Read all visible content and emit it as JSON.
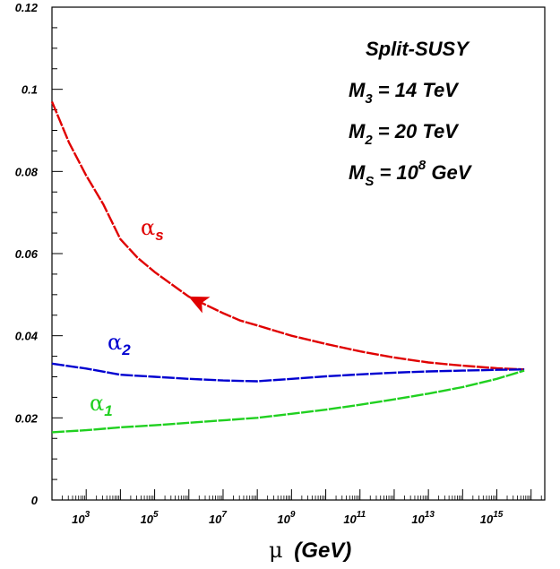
{
  "chart_data": {
    "type": "line",
    "title": "",
    "xlabel": {
      "symbol": "μ",
      "unit": "(GeV)"
    },
    "ylabel": "",
    "x_scale": "log10",
    "xlim_log10": [
      2.0,
      16.4
    ],
    "ylim": [
      0,
      0.12
    ],
    "grid": false,
    "y_ticks": [
      {
        "value": 0,
        "label": "0"
      },
      {
        "value": 0.02,
        "label": "0.02"
      },
      {
        "value": 0.04,
        "label": "0.04"
      },
      {
        "value": 0.06,
        "label": "0.06"
      },
      {
        "value": 0.08,
        "label": "0.08"
      },
      {
        "value": 0.1,
        "label": "0.1"
      },
      {
        "value": 0.12,
        "label": "0.12"
      }
    ],
    "x_ticks": [
      {
        "log10": 3,
        "base": "10",
        "exp": "3"
      },
      {
        "log10": 5,
        "base": "10",
        "exp": "5"
      },
      {
        "log10": 7,
        "base": "10",
        "exp": "7"
      },
      {
        "log10": 9,
        "base": "10",
        "exp": "9"
      },
      {
        "log10": 11,
        "base": "10",
        "exp": "11"
      },
      {
        "log10": 13,
        "base": "10",
        "exp": "13"
      },
      {
        "log10": 15,
        "base": "10",
        "exp": "15"
      }
    ],
    "annotation": {
      "lines": [
        {
          "main": "Split-SUSY",
          "sub": "",
          "tail": ""
        },
        {
          "main": "M",
          "sub": "3",
          "tail": " = 14 TeV"
        },
        {
          "main": "M",
          "sub": "2",
          "tail": " = 20 TeV"
        },
        {
          "main": "M",
          "sub": "S",
          "tail": " = 10",
          "sup": "8",
          "tail2": " GeV"
        }
      ]
    },
    "series": [
      {
        "name": "α_s",
        "label_symbol": "α",
        "label_sub": "s",
        "color": "#e00000",
        "x_log10": [
          2.0,
          2.5,
          3.0,
          3.5,
          4.0,
          4.5,
          5.0,
          5.5,
          6.0,
          6.5,
          7.0,
          7.5,
          8.0,
          9.0,
          10.0,
          11.0,
          12.0,
          13.0,
          14.0,
          15.0,
          15.5,
          15.8
        ],
        "values": [
          0.097,
          0.087,
          0.079,
          0.072,
          0.0635,
          0.059,
          0.0555,
          0.0525,
          0.0495,
          0.0475,
          0.0455,
          0.0437,
          0.0425,
          0.04,
          0.038,
          0.0362,
          0.0347,
          0.0335,
          0.0327,
          0.0321,
          0.0319,
          0.0318
        ],
        "arrow_at_log10": 6.3
      },
      {
        "name": "α_2",
        "label_symbol": "α",
        "label_sub": "2",
        "color": "#0000d0",
        "x_log10": [
          2.0,
          3.0,
          4.0,
          5.0,
          6.0,
          7.0,
          8.0,
          9.0,
          10.0,
          11.0,
          12.0,
          13.0,
          14.0,
          15.0,
          15.8
        ],
        "values": [
          0.0332,
          0.032,
          0.0305,
          0.03,
          0.0295,
          0.0291,
          0.0289,
          0.0295,
          0.0301,
          0.0306,
          0.031,
          0.0313,
          0.0315,
          0.0317,
          0.0318
        ]
      },
      {
        "name": "α_1",
        "label_symbol": "α",
        "label_sub": "1",
        "color": "#20d020",
        "x_log10": [
          2.0,
          3.0,
          4.0,
          5.0,
          6.0,
          7.0,
          8.0,
          9.0,
          10.0,
          11.0,
          12.0,
          13.0,
          14.0,
          15.0,
          15.8
        ],
        "values": [
          0.0165,
          0.017,
          0.0177,
          0.0182,
          0.0188,
          0.0194,
          0.02,
          0.021,
          0.022,
          0.0232,
          0.0245,
          0.0259,
          0.0275,
          0.0295,
          0.0315
        ]
      }
    ],
    "legend": "inline"
  }
}
